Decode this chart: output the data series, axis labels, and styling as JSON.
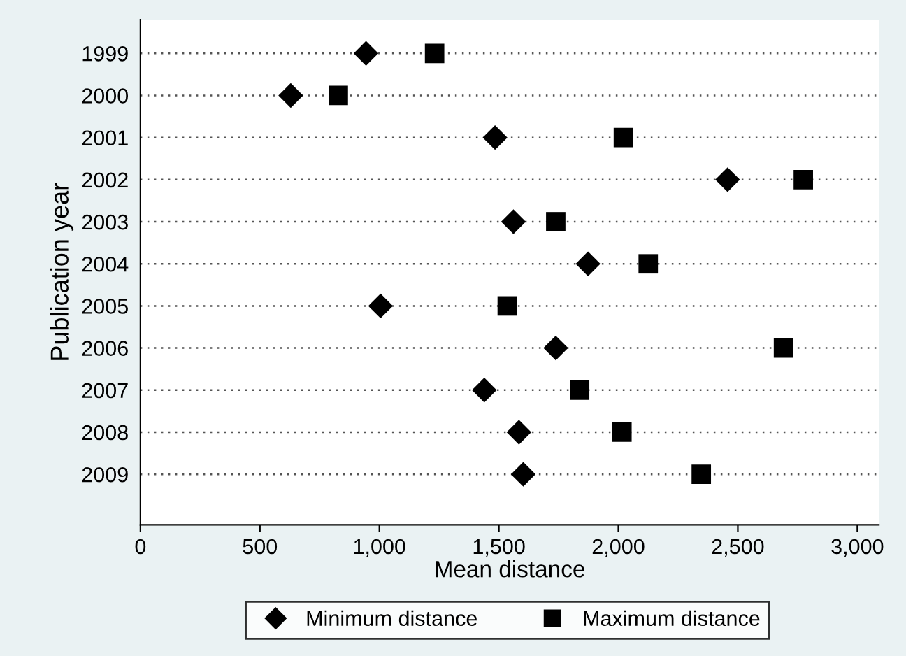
{
  "chart_data": {
    "type": "scatter",
    "orientation": "horizontal",
    "xlabel": "Mean distance",
    "ylabel": "Publication year",
    "categories": [
      "1999",
      "2000",
      "2001",
      "2002",
      "2003",
      "2004",
      "2005",
      "2006",
      "2007",
      "2008",
      "2009"
    ],
    "series": [
      {
        "name": "Minimum distance",
        "color": "#000000",
        "marker": "diamond",
        "values": [
          944,
          629,
          1484,
          2457,
          1561,
          1873,
          1005,
          1738,
          1439,
          1584,
          1602
        ]
      },
      {
        "name": "Maximum distance",
        "color": "#000000",
        "marker": "square",
        "values": [
          1231,
          828,
          2021,
          2774,
          1738,
          2125,
          1535,
          2691,
          1838,
          2015,
          2347
        ]
      }
    ],
    "xlim": [
      0,
      3090
    ],
    "xticks": [
      0,
      500,
      {
        "value": 1000,
        "label": "1,000"
      },
      {
        "value": 1500,
        "label": "1,500"
      },
      {
        "value": 2000,
        "label": "2,000"
      },
      {
        "value": 2500,
        "label": "2,500"
      },
      {
        "value": 3000,
        "label": "3,000"
      }
    ],
    "grid": "y",
    "legend": "bottom"
  }
}
